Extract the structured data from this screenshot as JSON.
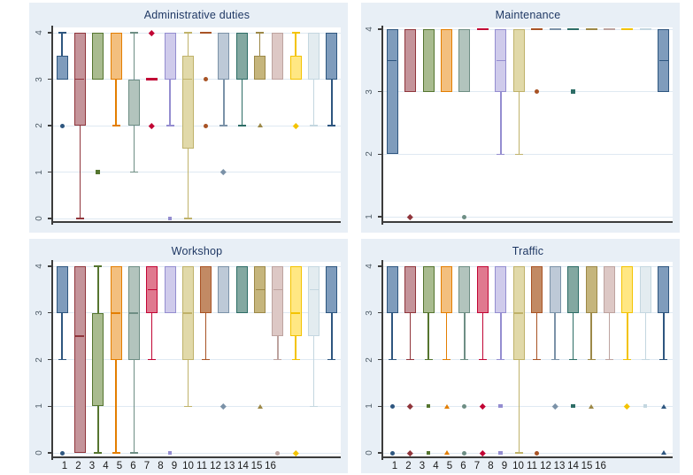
{
  "figure": {
    "background": "#ffffff",
    "panel_background": "#e8eff6",
    "plot_background": "#ffffff",
    "gridline_color": "#dfe9f2",
    "axis_color": "#3c3c3c",
    "title_color": "#1f3864",
    "ytick_label_color": "#4f5d68",
    "xtick_label_color": "#1b1b1b"
  },
  "chart_data": {
    "type": "box",
    "layout": "2x2 grid of box plots, 16 colored groups per panel, y-axis labels rotated 90deg, x labels 1-16 under bottom panels only",
    "palette": [
      {
        "name": "navy",
        "stroke": "#2e567f",
        "fill": "#7f9cbc"
      },
      {
        "name": "maroon",
        "stroke": "#90353b",
        "fill": "#c4949a"
      },
      {
        "name": "forest-green",
        "stroke": "#55752f",
        "fill": "#a9bb8f"
      },
      {
        "name": "dark-orange",
        "stroke": "#e37e00",
        "fill": "#f3bf7e"
      },
      {
        "name": "teal",
        "stroke": "#6e8e84",
        "fill": "#b2c4bd"
      },
      {
        "name": "cranberry",
        "stroke": "#c10534",
        "fill": "#e0798f"
      },
      {
        "name": "lavender",
        "stroke": "#948dd0",
        "fill": "#cfcbeb"
      },
      {
        "name": "khaki",
        "stroke": "#bfb26a",
        "fill": "#e1d9a9"
      },
      {
        "name": "sienna",
        "stroke": "#a85325",
        "fill": "#c28a64"
      },
      {
        "name": "mid-blue",
        "stroke": "#7b92a8",
        "fill": "#bdc9d7"
      },
      {
        "name": "emerald",
        "stroke": "#2d6d66",
        "fill": "#83a8a1"
      },
      {
        "name": "brown",
        "stroke": "#9c8847",
        "fill": "#c5b57c"
      },
      {
        "name": "rose",
        "stroke": "#bda39f",
        "fill": "#ddc8c5"
      },
      {
        "name": "gold",
        "stroke": "#f3c300",
        "fill": "#ffe783"
      },
      {
        "name": "bluish-gray",
        "stroke": "#c4d7e0",
        "fill": "#e3ecf0"
      },
      {
        "name": "navy",
        "stroke": "#2e567f",
        "fill": "#7f9cbc"
      }
    ],
    "xlabels": [
      "1",
      "2",
      "3",
      "4",
      "5",
      "6",
      "7",
      "8",
      "9",
      "10",
      "11",
      "12",
      "13",
      "14",
      "15",
      "16"
    ],
    "panels": [
      {
        "title": "Administrative duties",
        "ylim": [
          0,
          4
        ],
        "yticks": [
          0,
          1,
          2,
          3,
          4
        ],
        "show_xlabels": false,
        "boxes": [
          {
            "g": 1,
            "q1": 3,
            "q3": 3.5,
            "hi": 4,
            "out": [
              2
            ]
          },
          {
            "g": 2,
            "q1": 2,
            "q3": 4,
            "med": 3,
            "lo": 0
          },
          {
            "g": 3,
            "q1": 3,
            "q3": 4,
            "out": [
              1
            ]
          },
          {
            "g": 4,
            "q1": 3,
            "q3": 4,
            "lo": 2
          },
          {
            "g": 5,
            "q1": 2,
            "q3": 3,
            "hi": 4,
            "lo": 1
          },
          {
            "g": 6,
            "flat": 3,
            "out": [
              4,
              2
            ]
          },
          {
            "g": 7,
            "q1": 3,
            "q3": 4,
            "lo": 2,
            "out": [
              0
            ]
          },
          {
            "g": 8,
            "q1": 1.5,
            "q3": 3.5,
            "med": 3,
            "hi": 4,
            "lo": 0
          },
          {
            "g": 9,
            "flat": 4,
            "out": [
              3,
              2
            ]
          },
          {
            "g": 10,
            "q1": 3,
            "q3": 4,
            "lo": 2,
            "out": [
              1
            ]
          },
          {
            "g": 11,
            "q1": 3,
            "q3": 4,
            "lo": 2
          },
          {
            "g": 12,
            "q1": 3,
            "q3": 3.5,
            "hi": 4,
            "out": [
              2
            ]
          },
          {
            "g": 13,
            "q1": 3,
            "q3": 4
          },
          {
            "g": 14,
            "q1": 3,
            "q3": 3.5,
            "hi": 4,
            "out": [
              2
            ]
          },
          {
            "g": 15,
            "q1": 3,
            "q3": 4,
            "lo": 2
          },
          {
            "g": 16,
            "q1": 3,
            "q3": 4,
            "lo": 2
          }
        ]
      },
      {
        "title": "Maintenance",
        "ylim": [
          1,
          4
        ],
        "yticks": [
          1,
          2,
          3,
          4
        ],
        "show_xlabels": false,
        "boxes": [
          {
            "g": 1,
            "q1": 2,
            "q3": 4,
            "med": 3.5
          },
          {
            "g": 2,
            "q1": 3,
            "q3": 4,
            "out": [
              1
            ]
          },
          {
            "g": 3,
            "q1": 3,
            "q3": 4
          },
          {
            "g": 4,
            "q1": 3,
            "q3": 4
          },
          {
            "g": 5,
            "q1": 3,
            "q3": 4,
            "out": [
              1
            ]
          },
          {
            "g": 6,
            "flat": 4
          },
          {
            "g": 7,
            "q1": 3,
            "q3": 4,
            "med": 3.5,
            "lo": 2
          },
          {
            "g": 8,
            "q1": 3,
            "q3": 4,
            "lo": 2
          },
          {
            "g": 9,
            "flat": 4,
            "out": [
              3
            ]
          },
          {
            "g": 10,
            "flat": 4
          },
          {
            "g": 11,
            "flat": 4,
            "out": [
              3
            ]
          },
          {
            "g": 12,
            "flat": 4
          },
          {
            "g": 13,
            "flat": 4
          },
          {
            "g": 14,
            "flat": 4
          },
          {
            "g": 15,
            "flat": 4
          },
          {
            "g": 16,
            "q1": 3,
            "q3": 4,
            "med": 3.5
          }
        ]
      },
      {
        "title": "Workshop",
        "ylim": [
          0,
          4
        ],
        "yticks": [
          0,
          1,
          2,
          3,
          4
        ],
        "show_xlabels": true,
        "boxes": [
          {
            "g": 1,
            "q1": 3,
            "q3": 4,
            "lo": 2,
            "out": [
              0
            ]
          },
          {
            "g": 2,
            "q1": 0,
            "q3": 4,
            "med": 2.5
          },
          {
            "g": 3,
            "q1": 1,
            "q3": 3,
            "hi": 4,
            "lo": 0
          },
          {
            "g": 4,
            "q1": 2,
            "q3": 4,
            "med": 3,
            "lo": 0
          },
          {
            "g": 5,
            "q1": 2,
            "q3": 4,
            "med": 3,
            "lo": 0
          },
          {
            "g": 6,
            "q1": 3,
            "q3": 4,
            "med": 3.5,
            "lo": 2
          },
          {
            "g": 7,
            "q1": 3,
            "q3": 4,
            "out": [
              0
            ]
          },
          {
            "g": 8,
            "q1": 2,
            "q3": 4,
            "med": 3,
            "lo": 1
          },
          {
            "g": 9,
            "q1": 3,
            "q3": 4,
            "lo": 2
          },
          {
            "g": 10,
            "q1": 3,
            "q3": 4,
            "out": [
              1
            ]
          },
          {
            "g": 11,
            "q1": 3,
            "q3": 4
          },
          {
            "g": 12,
            "q1": 3,
            "q3": 4,
            "med": 3.5,
            "out": [
              1
            ]
          },
          {
            "g": 13,
            "q1": 2.5,
            "q3": 4,
            "med": 3.5,
            "lo": 2,
            "out": [
              0
            ]
          },
          {
            "g": 14,
            "q1": 2.5,
            "q3": 4,
            "med": 3,
            "lo": 2,
            "out": [
              0
            ]
          },
          {
            "g": 15,
            "q1": 2.5,
            "q3": 4,
            "med": 3.5,
            "lo": 1
          },
          {
            "g": 16,
            "q1": 3,
            "q3": 4,
            "lo": 2
          }
        ]
      },
      {
        "title": "Traffic",
        "ylim": [
          0,
          4
        ],
        "yticks": [
          0,
          1,
          2,
          3,
          4
        ],
        "show_xlabels": true,
        "boxes": [
          {
            "g": 1,
            "q1": 3,
            "q3": 4,
            "lo": 2,
            "out": [
              1,
              0
            ]
          },
          {
            "g": 2,
            "q1": 3,
            "q3": 4,
            "lo": 2,
            "out": [
              1,
              0
            ]
          },
          {
            "g": 3,
            "q1": 3,
            "q3": 4,
            "lo": 2,
            "out": [
              1,
              0
            ]
          },
          {
            "g": 4,
            "q1": 3,
            "q3": 4,
            "lo": 2,
            "out": [
              1,
              0
            ]
          },
          {
            "g": 5,
            "q1": 3,
            "q3": 4,
            "lo": 2,
            "out": [
              1,
              0
            ]
          },
          {
            "g": 6,
            "q1": 3,
            "q3": 4,
            "lo": 2,
            "out": [
              1,
              0
            ]
          },
          {
            "g": 7,
            "q1": 3,
            "q3": 4,
            "lo": 2,
            "out": [
              1,
              0
            ]
          },
          {
            "g": 8,
            "q1": 2,
            "q3": 4,
            "med": 3,
            "lo": 0
          },
          {
            "g": 9,
            "q1": 3,
            "q3": 4,
            "lo": 2,
            "out": [
              0
            ]
          },
          {
            "g": 10,
            "q1": 3,
            "q3": 4,
            "lo": 2,
            "out": [
              1
            ]
          },
          {
            "g": 11,
            "q1": 3,
            "q3": 4,
            "lo": 2,
            "out": [
              1
            ]
          },
          {
            "g": 12,
            "q1": 3,
            "q3": 4,
            "lo": 2,
            "out": [
              1
            ]
          },
          {
            "g": 13,
            "q1": 3,
            "q3": 4,
            "lo": 2
          },
          {
            "g": 14,
            "q1": 3,
            "q3": 4,
            "lo": 2,
            "out": [
              1
            ]
          },
          {
            "g": 15,
            "q1": 3,
            "q3": 4,
            "lo": 2,
            "out": [
              1
            ]
          },
          {
            "g": 16,
            "q1": 3,
            "q3": 4,
            "lo": 2,
            "out": [
              1,
              0
            ]
          }
        ]
      }
    ]
  }
}
